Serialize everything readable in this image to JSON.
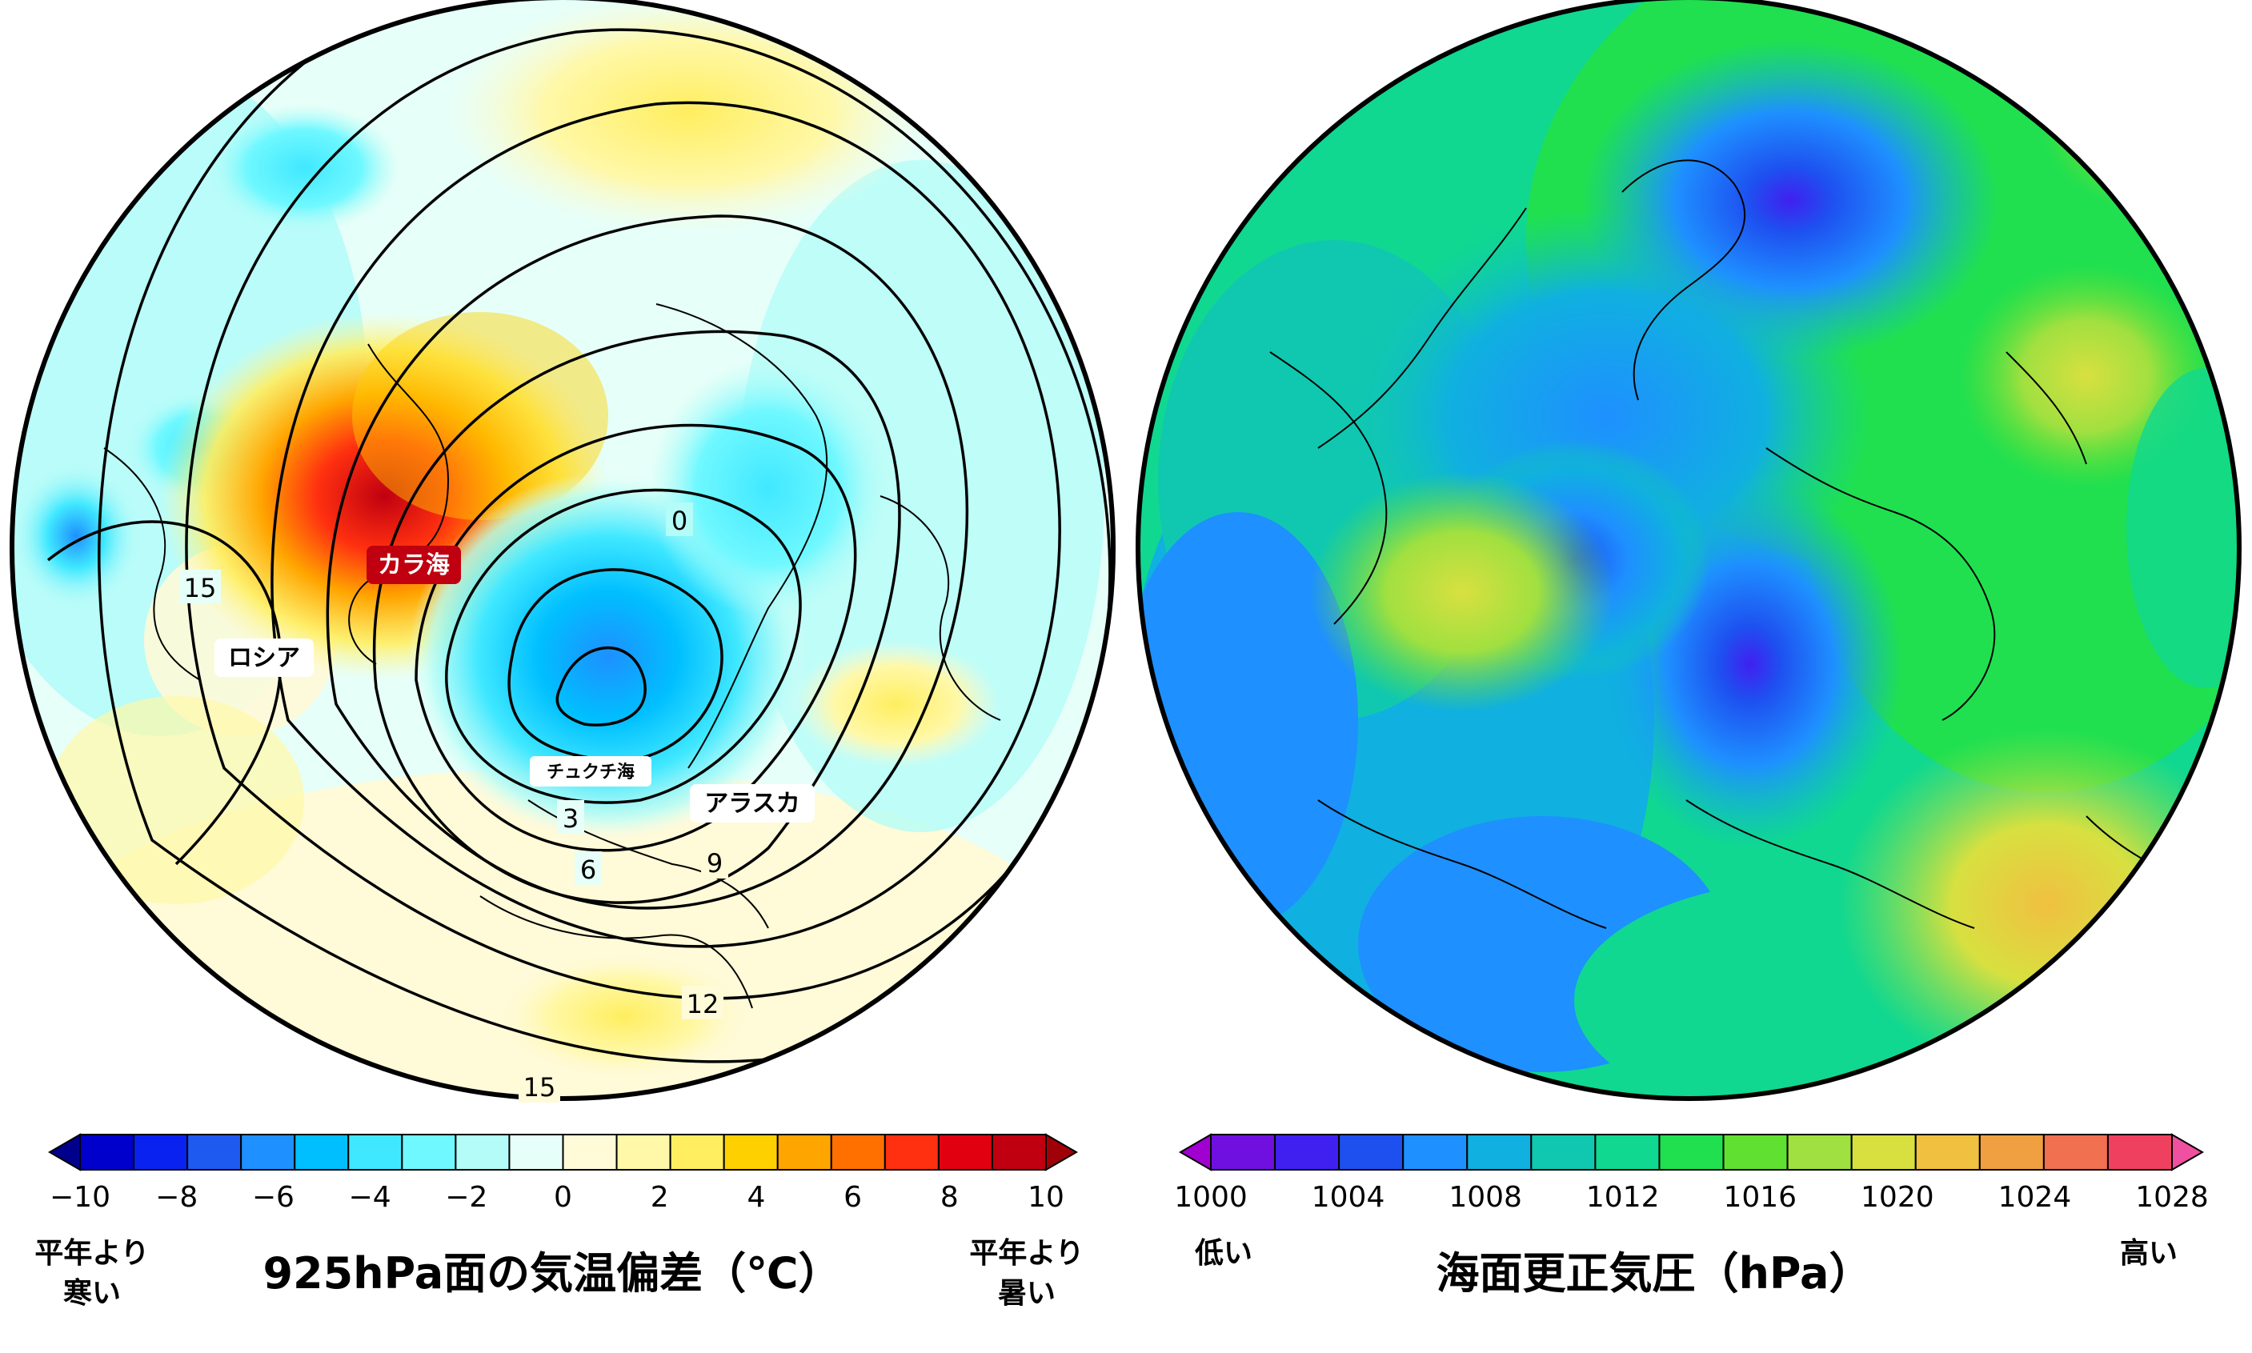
{
  "left_map": {
    "title": "925hPa面の気温偏差（℃）",
    "legend_low": [
      "平年より",
      "寒い"
    ],
    "legend_high": [
      "平年より",
      "暑い"
    ],
    "colorbar_ticks": [
      "−10",
      "−8",
      "−6",
      "−4",
      "−2",
      "0",
      "2",
      "4",
      "6",
      "8",
      "10"
    ],
    "colorbar_colors": [
      "#00008b",
      "#0000cd",
      "#0a22f0",
      "#1e5af0",
      "#1e90ff",
      "#00bfff",
      "#40e8ff",
      "#6ff8ff",
      "#b4fcf8",
      "#e6fff8",
      "#fffad8",
      "#fff8a8",
      "#ffee60",
      "#ffd000",
      "#ffa500",
      "#ff7000",
      "#ff3010",
      "#e00010",
      "#c00010",
      "#a00008"
    ],
    "labels": {
      "kara_sea": "カラ海",
      "russia": "ロシア",
      "chukchi_sea": "チュクチ海",
      "alaska": "アラスカ"
    },
    "contour_labels": [
      "0",
      "3",
      "6",
      "9",
      "12",
      "15",
      "15"
    ]
  },
  "right_map": {
    "title": "海面更正気圧（hPa）",
    "legend_low": "低い",
    "legend_high": "高い",
    "colorbar_ticks": [
      "1000",
      "1004",
      "1008",
      "1012",
      "1016",
      "1020",
      "1024",
      "1028"
    ],
    "colorbar_colors": [
      "#a000d0",
      "#7010e0",
      "#4020f0",
      "#1e50f0",
      "#1e90ff",
      "#10b0e0",
      "#10c8b0",
      "#10d890",
      "#20e050",
      "#60e030",
      "#a0e040",
      "#d8e040",
      "#f0c040",
      "#f0a040",
      "#f07050",
      "#f04060",
      "#f050a0"
    ]
  },
  "colors": {
    "outline": "#000000",
    "background": "#ffffff"
  }
}
